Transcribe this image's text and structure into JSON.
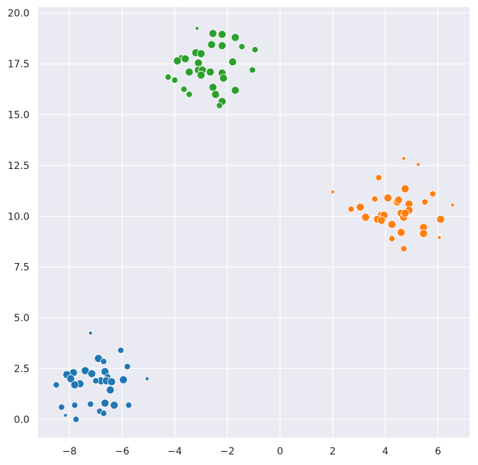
{
  "chart_data": {
    "type": "scatter",
    "title": "",
    "xlabel": "",
    "ylabel": "",
    "xlim": [
      -9.2,
      7.2
    ],
    "ylim": [
      -0.9,
      20.3
    ],
    "xticks": [
      -8,
      -6,
      -4,
      -2,
      0,
      2,
      4,
      6
    ],
    "yticks": [
      0.0,
      2.5,
      5.0,
      7.5,
      10.0,
      12.5,
      15.0,
      17.5,
      20.0
    ],
    "xtick_labels": [
      "−8",
      "−6",
      "−4",
      "−2",
      "0",
      "2",
      "4",
      "6"
    ],
    "ytick_labels": [
      "0.0",
      "2.5",
      "5.0",
      "7.5",
      "10.0",
      "12.5",
      "15.0",
      "17.5",
      "20.0"
    ],
    "grid": true,
    "background_color": "#eaeaf2",
    "size_note": "marker area encodes a per-point size value (small, medium, large)",
    "series": [
      {
        "color": "#1f77b4",
        "points": [
          [
            -7.2,
            4.25,
            1
          ],
          [
            -6.05,
            3.4,
            2
          ],
          [
            -5.05,
            2.0,
            1
          ],
          [
            -5.8,
            2.6,
            2
          ],
          [
            -6.9,
            3.0,
            3
          ],
          [
            -6.7,
            2.85,
            2
          ],
          [
            -7.4,
            2.4,
            3
          ],
          [
            -7.15,
            2.25,
            3
          ],
          [
            -6.65,
            2.35,
            3
          ],
          [
            -6.55,
            2.1,
            2
          ],
          [
            -6.8,
            1.9,
            3
          ],
          [
            -6.6,
            1.9,
            3
          ],
          [
            -6.4,
            1.85,
            3
          ],
          [
            -5.95,
            1.95,
            3
          ],
          [
            -7.0,
            1.9,
            2
          ],
          [
            -7.85,
            2.3,
            3
          ],
          [
            -8.1,
            2.2,
            3
          ],
          [
            -7.95,
            2.0,
            3
          ],
          [
            -7.6,
            1.75,
            3
          ],
          [
            -7.8,
            1.7,
            3
          ],
          [
            -8.5,
            1.7,
            2
          ],
          [
            -6.45,
            1.45,
            3
          ],
          [
            -7.2,
            0.75,
            2
          ],
          [
            -6.65,
            0.8,
            3
          ],
          [
            -6.3,
            0.7,
            3
          ],
          [
            -5.75,
            0.7,
            2
          ],
          [
            -7.8,
            0.7,
            2
          ],
          [
            -8.3,
            0.6,
            2
          ],
          [
            -6.85,
            0.4,
            2
          ],
          [
            -6.7,
            0.3,
            2
          ],
          [
            -8.15,
            0.2,
            1
          ],
          [
            -7.75,
            0.0,
            2
          ]
        ]
      },
      {
        "color": "#ff7f0e",
        "points": [
          [
            4.7,
            12.85,
            1
          ],
          [
            5.25,
            12.55,
            1
          ],
          [
            2.0,
            11.2,
            1
          ],
          [
            3.75,
            11.9,
            2
          ],
          [
            4.75,
            11.35,
            3
          ],
          [
            5.8,
            11.1,
            2
          ],
          [
            6.55,
            10.55,
            1
          ],
          [
            5.5,
            10.7,
            2
          ],
          [
            3.6,
            10.85,
            2
          ],
          [
            4.1,
            10.9,
            3
          ],
          [
            4.45,
            10.7,
            3
          ],
          [
            4.5,
            10.8,
            3
          ],
          [
            2.7,
            10.35,
            2
          ],
          [
            3.05,
            10.45,
            3
          ],
          [
            4.9,
            10.6,
            3
          ],
          [
            4.9,
            10.3,
            3
          ],
          [
            4.6,
            10.15,
            3
          ],
          [
            3.85,
            10.05,
            3
          ],
          [
            3.95,
            10.05,
            3
          ],
          [
            3.25,
            9.95,
            3
          ],
          [
            4.7,
            9.95,
            3
          ],
          [
            4.75,
            10.15,
            3
          ],
          [
            3.7,
            9.85,
            3
          ],
          [
            3.85,
            9.8,
            3
          ],
          [
            6.1,
            9.85,
            3
          ],
          [
            4.25,
            9.6,
            3
          ],
          [
            5.45,
            9.45,
            3
          ],
          [
            4.6,
            9.2,
            3
          ],
          [
            5.45,
            9.15,
            3
          ],
          [
            4.25,
            8.9,
            2
          ],
          [
            6.05,
            8.95,
            1
          ],
          [
            4.7,
            8.4,
            2
          ]
        ]
      },
      {
        "color": "#2ca02c",
        "points": [
          [
            -3.15,
            19.25,
            1
          ],
          [
            -2.55,
            19.0,
            3
          ],
          [
            -2.2,
            18.95,
            3
          ],
          [
            -1.7,
            18.8,
            3
          ],
          [
            -2.6,
            18.45,
            3
          ],
          [
            -2.2,
            18.4,
            3
          ],
          [
            -1.45,
            18.35,
            2
          ],
          [
            -0.95,
            18.2,
            2
          ],
          [
            -3.2,
            18.05,
            3
          ],
          [
            -3.0,
            18.0,
            3
          ],
          [
            -3.75,
            17.8,
            2
          ],
          [
            -3.6,
            17.75,
            3
          ],
          [
            -3.9,
            17.65,
            3
          ],
          [
            -1.8,
            17.6,
            3
          ],
          [
            -3.1,
            17.55,
            3
          ],
          [
            -3.1,
            17.2,
            3
          ],
          [
            -2.95,
            17.2,
            3
          ],
          [
            -3.45,
            17.1,
            3
          ],
          [
            -2.65,
            17.1,
            3
          ],
          [
            -2.2,
            17.05,
            3
          ],
          [
            -1.05,
            17.2,
            2
          ],
          [
            -3.0,
            16.95,
            3
          ],
          [
            -4.25,
            16.85,
            2
          ],
          [
            -2.15,
            16.8,
            3
          ],
          [
            -4.0,
            16.7,
            2
          ],
          [
            -2.55,
            16.35,
            3
          ],
          [
            -3.65,
            16.25,
            2
          ],
          [
            -1.7,
            16.2,
            3
          ],
          [
            -3.45,
            16.0,
            2
          ],
          [
            -2.45,
            16.0,
            3
          ],
          [
            -2.2,
            15.65,
            3
          ],
          [
            -2.3,
            15.45,
            2
          ]
        ]
      }
    ]
  }
}
